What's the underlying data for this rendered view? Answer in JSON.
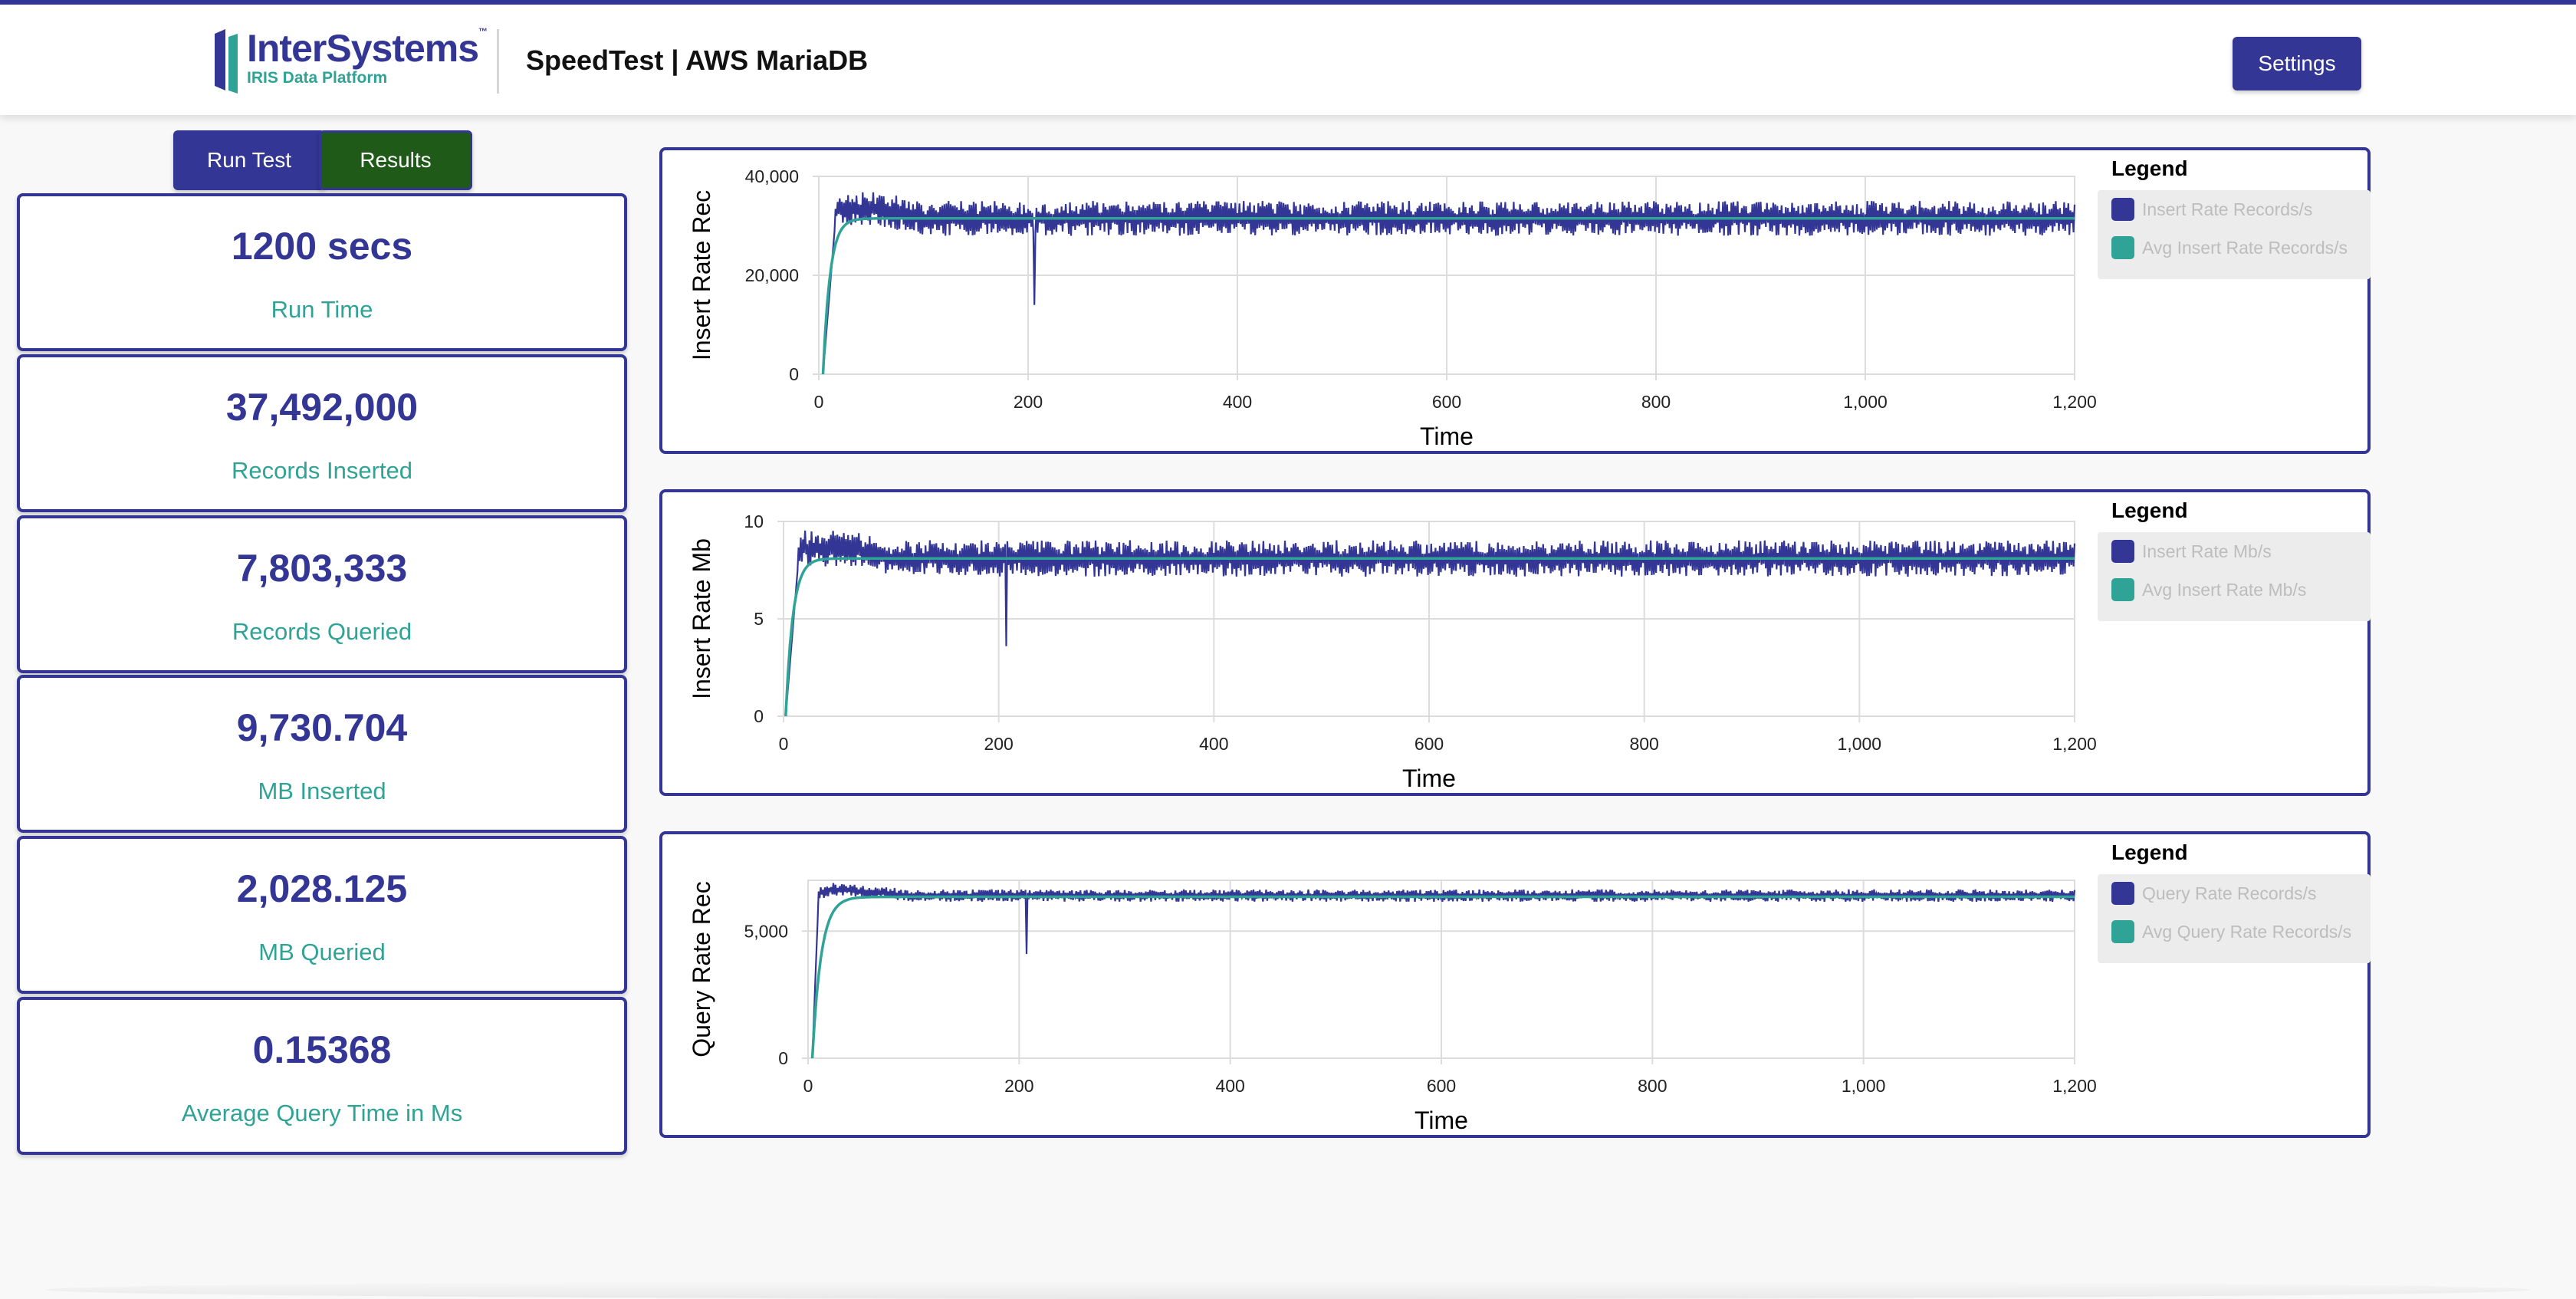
{
  "header": {
    "brand_name": "InterSystems",
    "brand_tm": "™",
    "brand_sub": "IRIS Data Platform",
    "title": "SpeedTest | AWS MariaDB",
    "settings_label": "Settings"
  },
  "actions": {
    "run_label": "Run Test",
    "results_label": "Results"
  },
  "stats": [
    {
      "value": "1200 secs",
      "label": "Run Time"
    },
    {
      "value": "37,492,000",
      "label": "Records Inserted"
    },
    {
      "value": "7,803,333",
      "label": "Records Queried"
    },
    {
      "value": "9,730.704",
      "label": "MB Inserted"
    },
    {
      "value": "2,028.125",
      "label": "MB Queried"
    },
    {
      "value": "0.15368",
      "label": "Average Query Time in Ms"
    }
  ],
  "colors": {
    "brand": "#333695",
    "accent": "#2fa395",
    "results_button": "#1f5a19"
  },
  "chart_data": [
    {
      "type": "line",
      "ylabel": "Insert Rate Rec",
      "xlabel": "Time",
      "xlim": [
        0,
        1200
      ],
      "ylim": [
        0,
        40000
      ],
      "xticks": [
        "0",
        "200",
        "400",
        "600",
        "800",
        "1,000",
        "1,200"
      ],
      "yticks": [
        "0",
        "20,000",
        "40,000"
      ],
      "legend_title": "Legend",
      "legend_position": "right",
      "grid": true,
      "series": [
        {
          "name": "Insert Rate Records/s",
          "color": "#333695",
          "level": 31500,
          "noise": 3200,
          "start": 4,
          "ramp": 12,
          "spike_x": 206,
          "spike_y": 14000,
          "peak_x": 60,
          "peak_y": 36000
        },
        {
          "name": "Avg Insert Rate Records/s",
          "color": "#2fa395",
          "level": 31500,
          "start": 4,
          "ramp": 20
        }
      ]
    },
    {
      "type": "line",
      "ylabel": "Insert Rate Mb",
      "xlabel": "Time",
      "xlim": [
        0,
        1200
      ],
      "ylim": [
        0,
        10
      ],
      "xticks": [
        "0",
        "200",
        "400",
        "600",
        "800",
        "1,000",
        "1,200"
      ],
      "yticks": [
        "0",
        "5",
        "10"
      ],
      "legend_title": "Legend",
      "legend_position": "right",
      "grid": true,
      "series": [
        {
          "name": "Insert Rate Mb/s",
          "color": "#333695",
          "level": 8.1,
          "noise": 0.85,
          "start": 2,
          "ramp": 12,
          "spike_x": 207,
          "spike_y": 3.6,
          "peak_x": 60,
          "peak_y": 9.3
        },
        {
          "name": "Avg Insert Rate Mb/s",
          "color": "#2fa395",
          "level": 8.1,
          "start": 2,
          "ramp": 20
        }
      ]
    },
    {
      "type": "line",
      "ylabel": "Query Rate Rec",
      "xlabel": "Time",
      "xlim": [
        0,
        1200
      ],
      "ylim": [
        0,
        7000
      ],
      "xticks": [
        "0",
        "200",
        "400",
        "600",
        "800",
        "1,000",
        "1,200"
      ],
      "yticks": [
        "0",
        "5,000"
      ],
      "ytick_values": [
        0,
        5000
      ],
      "legend_title": "Legend",
      "legend_position": "right",
      "grid": true,
      "series": [
        {
          "name": "Query Rate Records/s",
          "color": "#333695",
          "level": 6400,
          "noise": 220,
          "start": 4,
          "ramp": 6,
          "spike_x": 207,
          "spike_y": 4100,
          "peak_x": 20,
          "peak_y": 6700
        },
        {
          "name": "Avg Query Rate Records/s",
          "color": "#2fa395",
          "level": 6350,
          "start": 4,
          "ramp": 25
        }
      ]
    }
  ]
}
